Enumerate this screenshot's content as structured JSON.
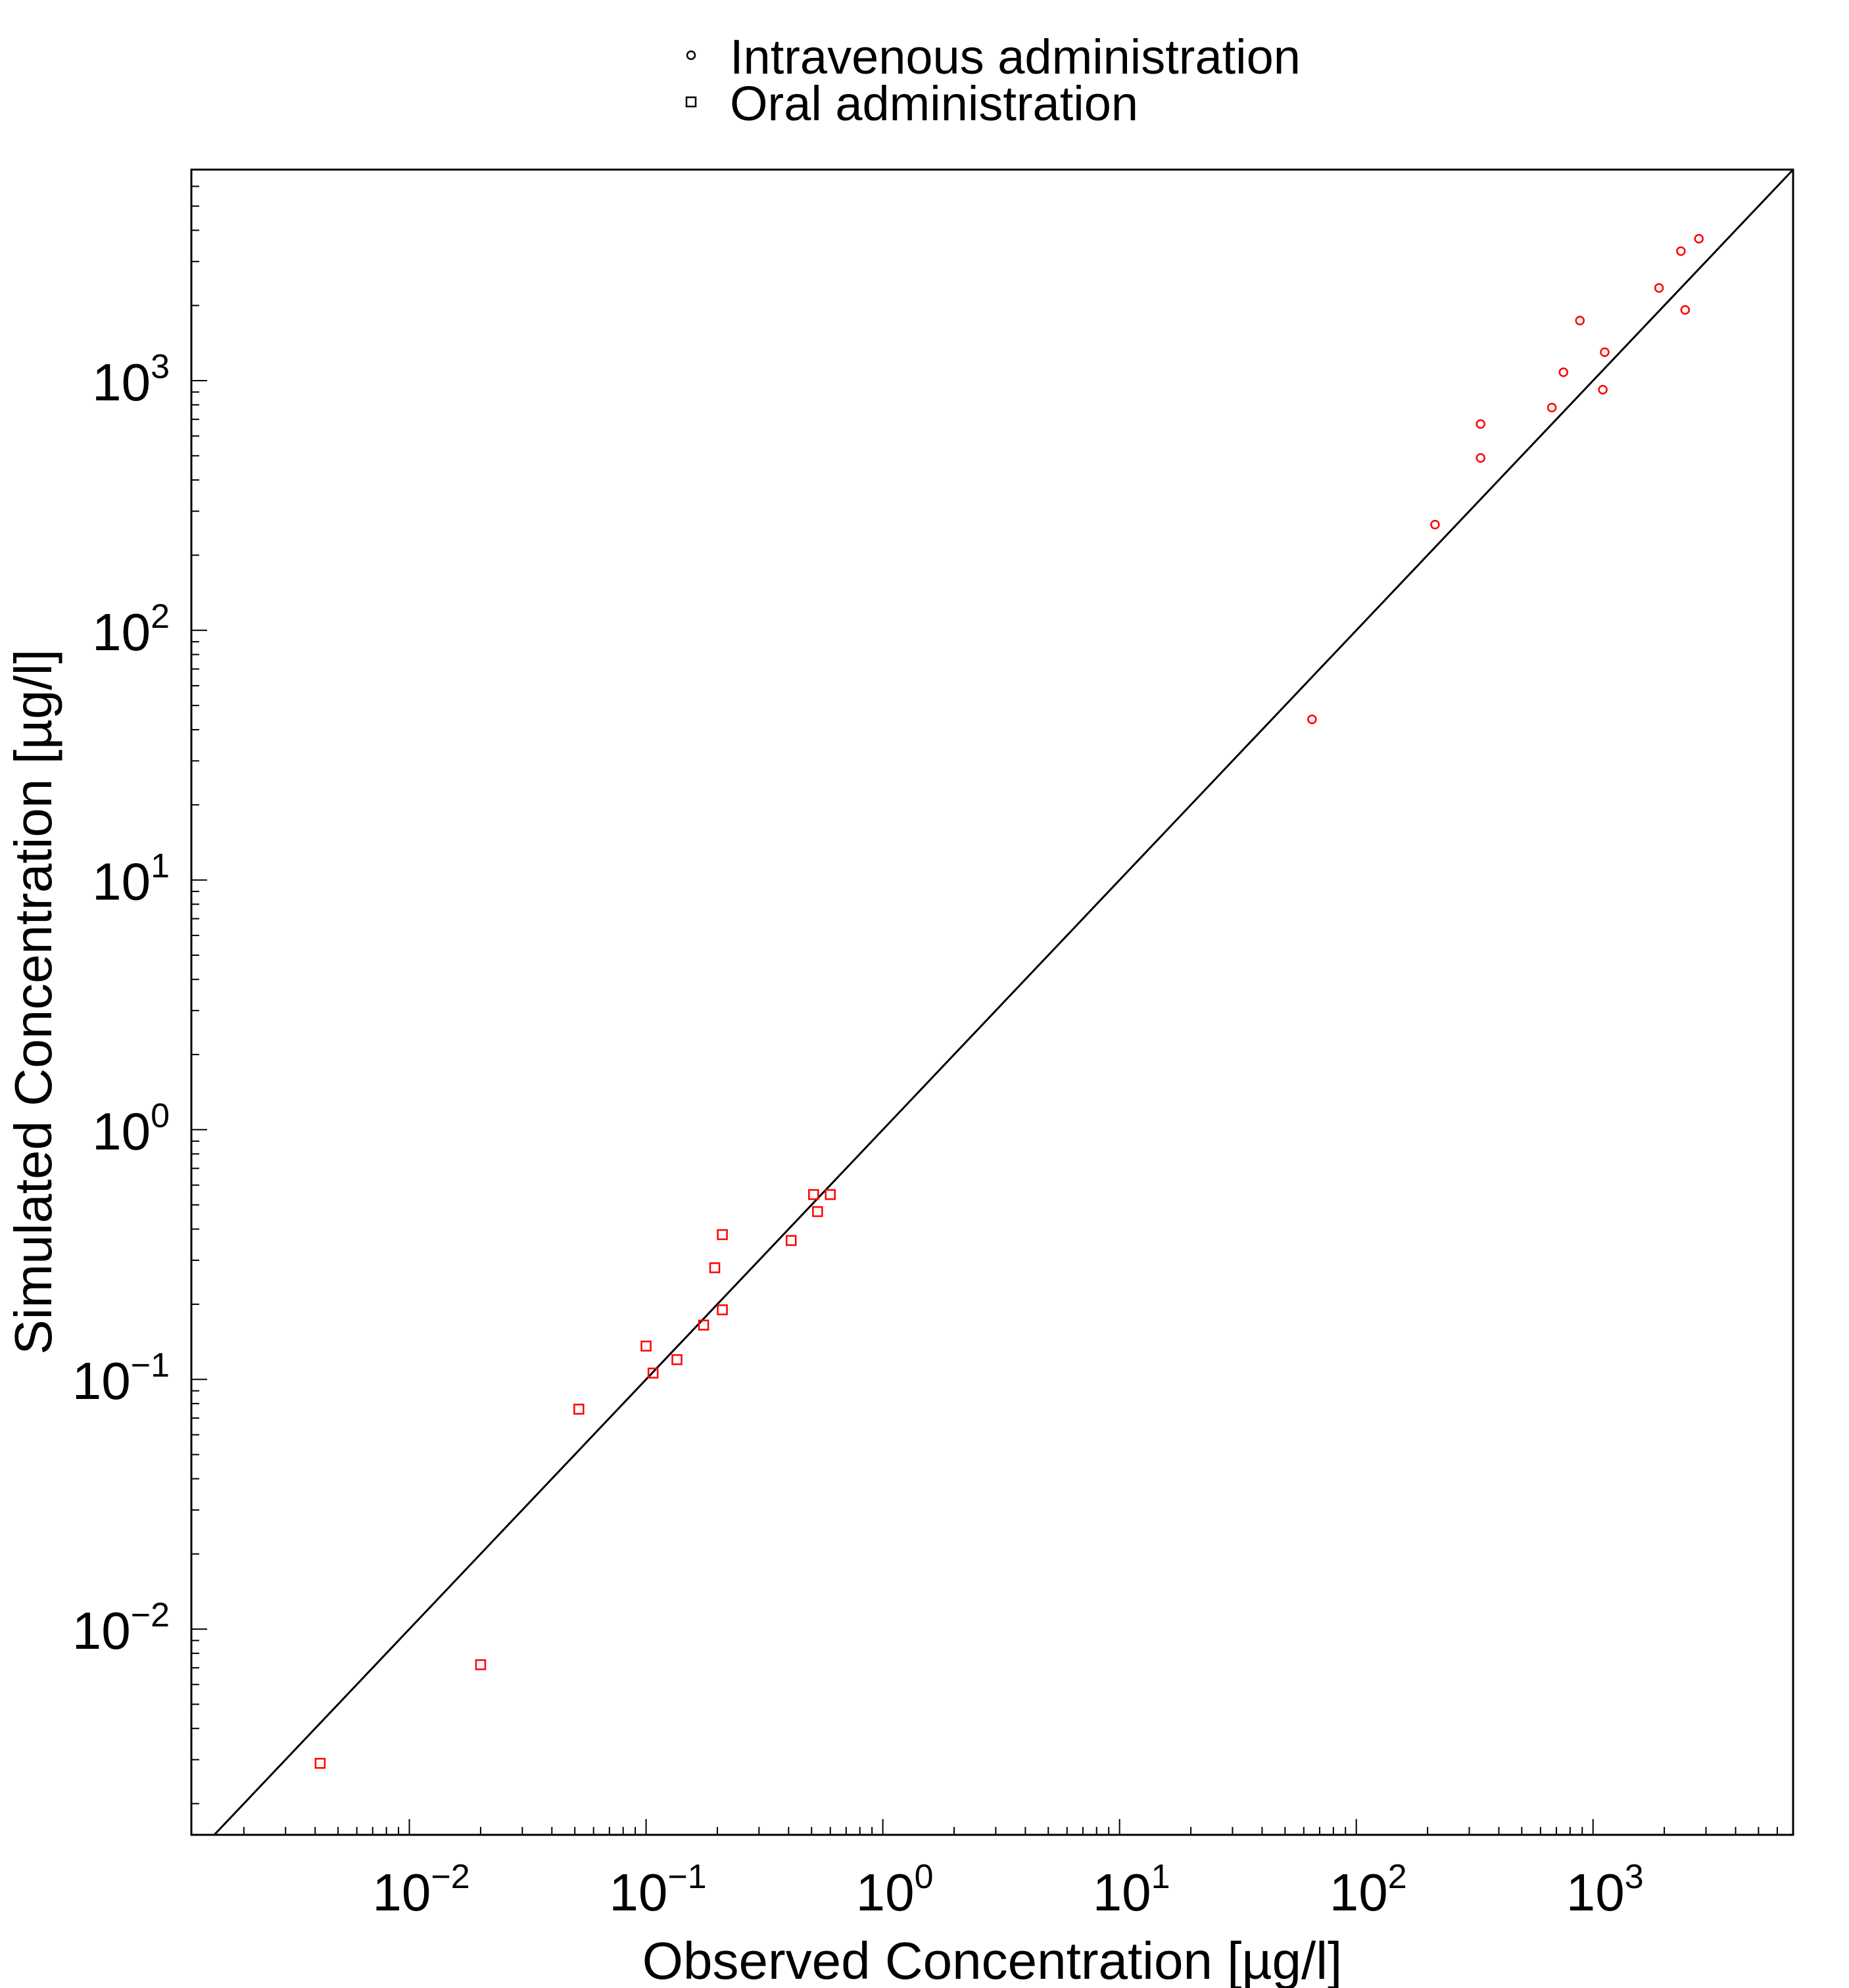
{
  "chart_data": {
    "type": "scatter",
    "title": "",
    "xlabel": "Observed Concentration [µg/l]",
    "ylabel": "Simulated Concentration [µg/l]",
    "xscale": "log",
    "yscale": "log",
    "xlim": [
      0.0012,
      7000
    ],
    "ylim": [
      0.0015,
      7000
    ],
    "x_ticks": [
      {
        "value": 0.01,
        "base": "10",
        "exp": "−2"
      },
      {
        "value": 0.1,
        "base": "10",
        "exp": "−1"
      },
      {
        "value": 1,
        "base": "10",
        "exp": "0"
      },
      {
        "value": 10,
        "base": "10",
        "exp": "1"
      },
      {
        "value": 100,
        "base": "10",
        "exp": "2"
      },
      {
        "value": 1000,
        "base": "10",
        "exp": "3"
      }
    ],
    "y_ticks": [
      {
        "value": 0.01,
        "base": "10",
        "exp": "−2"
      },
      {
        "value": 0.1,
        "base": "10",
        "exp": "−1"
      },
      {
        "value": 1,
        "base": "10",
        "exp": "0"
      },
      {
        "value": 10,
        "base": "10",
        "exp": "1"
      },
      {
        "value": 100,
        "base": "10",
        "exp": "2"
      },
      {
        "value": 1000,
        "base": "10",
        "exp": "3"
      }
    ],
    "grid": false,
    "legend_position": "top-center",
    "identity_line": {
      "from": [
        0.0012,
        0.0012
      ],
      "to": [
        7000,
        7000
      ],
      "color": "#000000"
    },
    "series": [
      {
        "name": "Intravenous administration",
        "marker": "circle",
        "color": "#ff0000",
        "points": [
          [
            2800,
            3700
          ],
          [
            2350,
            3300
          ],
          [
            1900,
            2350
          ],
          [
            2450,
            1920
          ],
          [
            880,
            1740
          ],
          [
            1120,
            1300
          ],
          [
            750,
            1080
          ],
          [
            1100,
            920
          ],
          [
            670,
            780
          ],
          [
            335,
            670
          ],
          [
            335,
            490
          ],
          [
            215,
            265
          ],
          [
            65,
            44
          ]
        ]
      },
      {
        "name": "Oral administration",
        "marker": "square",
        "color": "#ff0000",
        "points": [
          [
            0.6,
            0.55
          ],
          [
            0.51,
            0.55
          ],
          [
            0.53,
            0.47
          ],
          [
            0.41,
            0.36
          ],
          [
            0.21,
            0.38
          ],
          [
            0.195,
            0.28
          ],
          [
            0.21,
            0.19
          ],
          [
            0.175,
            0.165
          ],
          [
            0.1,
            0.136
          ],
          [
            0.135,
            0.12
          ],
          [
            0.107,
            0.106
          ],
          [
            0.052,
            0.076
          ],
          [
            0.02,
            0.0072
          ],
          [
            0.0042,
            0.0029
          ]
        ]
      }
    ]
  }
}
